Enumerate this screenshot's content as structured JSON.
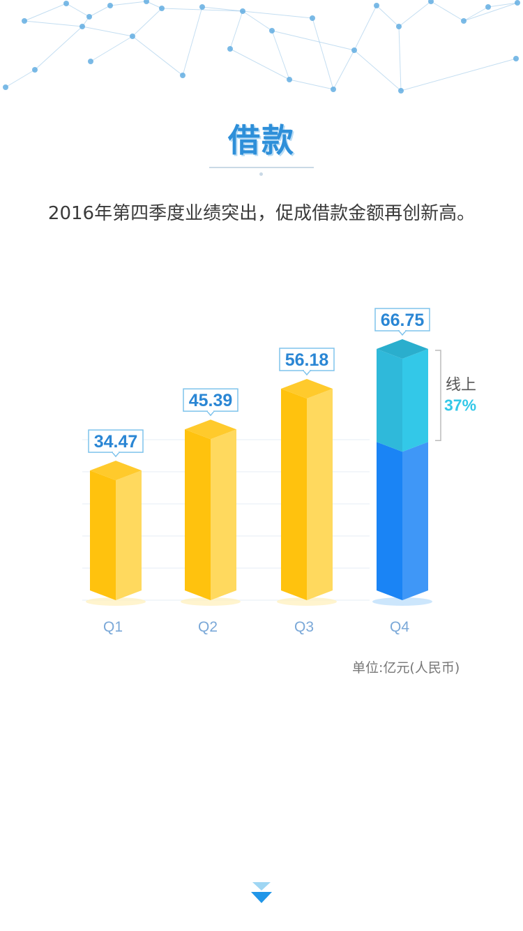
{
  "header": {
    "title": "借款",
    "subtitle": "2016年第四季度业绩突出，促成借款金额再创新高。"
  },
  "chart_data": {
    "type": "bar",
    "categories": [
      "Q1",
      "Q2",
      "Q3",
      "Q4"
    ],
    "values": [
      34.47,
      45.39,
      56.18,
      66.75
    ],
    "value_labels": [
      "34.47",
      "45.39",
      "56.18",
      "66.75"
    ],
    "annotation": {
      "category": "Q4",
      "label": "线上",
      "percent": "37%",
      "fraction": 0.37
    },
    "unit": "单位:亿元(人民币)",
    "ylim": [
      0,
      66.75
    ],
    "grid": true,
    "colors": {
      "bar": "#ffc20e",
      "bar_light": "#ffd95e",
      "bar_top": "#ffca2c",
      "q4_online": "#33c8e8",
      "q4_offline": "#1a84f5",
      "label_text": "#2a86d4",
      "label_border": "#7ec3ec",
      "percent": "#33c8e8",
      "axis_text": "#7aa8d8"
    }
  },
  "footer": {
    "scroll_icon": "double-chevron-down-icon"
  }
}
